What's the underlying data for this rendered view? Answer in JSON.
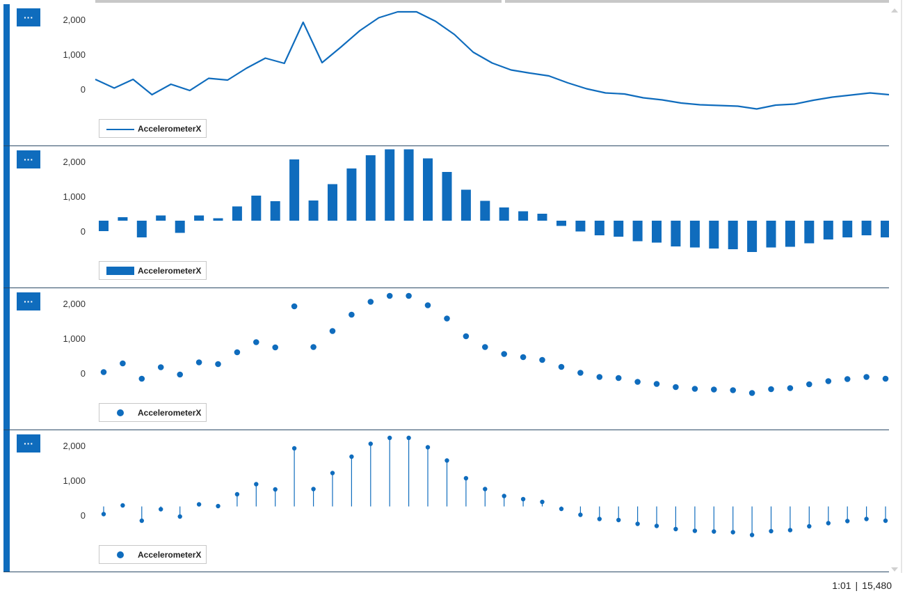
{
  "toolbar": {
    "more_label": "···"
  },
  "status": {
    "position": "1:01",
    "count": "15,480"
  },
  "chart_data": [
    {
      "type": "line",
      "series": [
        {
          "name": "AccelerometerX",
          "values": [
            280,
            30,
            280,
            -160,
            140,
            -40,
            310,
            260,
            600,
            890,
            740,
            1920,
            760,
            1210,
            1680,
            2050,
            2220,
            2220,
            1950,
            1570,
            1060,
            750,
            550,
            460,
            380,
            180,
            10,
            -110,
            -140,
            -250,
            -310,
            -400,
            -450,
            -470,
            -490,
            -570,
            -460,
            -430,
            -320,
            -230,
            -170,
            -110,
            -160
          ]
        }
      ],
      "yticks": [
        "2,000",
        "1,000",
        "0"
      ],
      "ylim": [
        -1000,
        2250
      ],
      "legend": "bottom-left"
    },
    {
      "type": "bar",
      "series": [
        {
          "name": "AccelerometerX",
          "values": [
            -300,
            100,
            -480,
            150,
            -350,
            150,
            70,
            410,
            720,
            560,
            1760,
            580,
            1050,
            1500,
            1880,
            2050,
            2050,
            1790,
            1400,
            890,
            570,
            380,
            270,
            200,
            -150,
            -310,
            -420,
            -460,
            -590,
            -630,
            -740,
            -770,
            -800,
            -820,
            -900,
            -770,
            -750,
            -650,
            -540,
            -480,
            -420,
            -480
          ]
        }
      ],
      "yticks": [
        "2,000",
        "1,000",
        "0"
      ],
      "ylim": [
        -1000,
        2250
      ],
      "legend": "bottom-left"
    },
    {
      "type": "scatter",
      "series": [
        {
          "name": "AccelerometerX",
          "values": [
            30,
            280,
            -160,
            170,
            -40,
            310,
            260,
            600,
            890,
            740,
            1920,
            750,
            1210,
            1680,
            2050,
            2220,
            2220,
            1950,
            1570,
            1060,
            750,
            550,
            460,
            380,
            180,
            10,
            -110,
            -140,
            -250,
            -310,
            -400,
            -450,
            -470,
            -490,
            -570,
            -460,
            -430,
            -320,
            -230,
            -170,
            -110,
            -160
          ]
        }
      ],
      "yticks": [
        "2,000",
        "1,000",
        "0"
      ],
      "ylim": [
        -1000,
        2250
      ],
      "legend": "bottom-left"
    },
    {
      "type": "scatter",
      "series": [
        {
          "name": "AccelerometerX",
          "values": [
            30,
            280,
            -160,
            170,
            -40,
            310,
            260,
            600,
            890,
            740,
            1920,
            750,
            1210,
            1680,
            2050,
            2220,
            2220,
            1950,
            1570,
            1060,
            750,
            550,
            460,
            380,
            180,
            10,
            -110,
            -140,
            -250,
            -310,
            -400,
            -450,
            -470,
            -490,
            -570,
            -460,
            -430,
            -320,
            -230,
            -170,
            -110,
            -160
          ]
        }
      ],
      "yticks": [
        "2,000",
        "1,000",
        "0"
      ],
      "ylim": [
        -1000,
        2250
      ],
      "legend": "bottom-left",
      "stem_baseline": 250
    }
  ]
}
